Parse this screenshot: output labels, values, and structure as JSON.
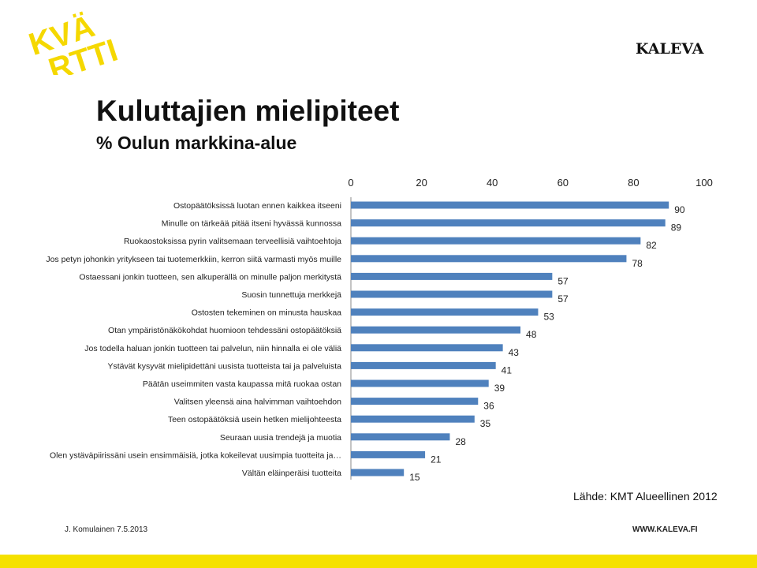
{
  "header": {
    "logo_text": "KVÄRTTI",
    "brand": "KALEVA"
  },
  "title": "Kuluttajien mielipiteet",
  "subtitle": "% Oulun markkina-alue",
  "source": "Lähde: KMT Alueellinen 2012",
  "footer": {
    "author_date": "J. Komulainen 7.5.2013",
    "website": "WWW.KALEVA.FI"
  },
  "colors": {
    "bar": "#4f81bd",
    "logo": "#f5d800",
    "strip": "#f5e100"
  },
  "chart_data": {
    "type": "bar",
    "orientation": "horizontal",
    "xlim": [
      0,
      100
    ],
    "x_ticks": [
      "0",
      "20",
      "40",
      "60",
      "80",
      "100"
    ],
    "categories": [
      "Ostopäätöksissä luotan ennen kaikkea itseeni",
      "Minulle on tärkeää pitää itseni hyvässä kunnossa",
      "Ruokaostoksissa pyrin valitsemaan terveellisiä vaihtoehtoja",
      "Jos petyn johonkin yritykseen tai tuotemerkkiin, kerron siitä varmasti myös muille",
      "Ostaessani jonkin tuotteen, sen alkuperällä on minulle paljon merkitystä",
      "Suosin tunnettuja merkkejä",
      "Ostosten tekeminen on minusta hauskaa",
      "Otan ympäristönäkökohdat huomioon tehdessäni ostopäätöksiä",
      "Jos todella haluan jonkin tuotteen tai palvelun, niin hinnalla ei ole väliä",
      "Ystävät kysyvät mielipidettäni uusista tuotteista tai ja palveluista",
      "Päätän useimmiten vasta kaupassa mitä ruokaa ostan",
      "Valitsen yleensä aina halvimman vaihtoehdon",
      "Teen ostopäätöksiä usein hetken mielijohteesta",
      "Seuraan uusia trendejä ja muotia",
      "Olen ystäväpiirissäni usein ensimmäisiä, jotka kokeilevat uusimpia tuotteita ja…",
      "Vältän eläinperäisi tuotteita"
    ],
    "values": [
      90,
      89,
      82,
      78,
      57,
      57,
      53,
      48,
      43,
      41,
      39,
      36,
      35,
      28,
      21,
      15
    ]
  }
}
